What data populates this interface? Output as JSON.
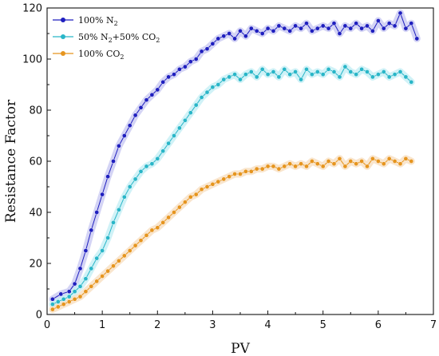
{
  "chart_data": {
    "type": "line",
    "xlabel": "PV",
    "ylabel": "Resistance Factor",
    "xlim": [
      0,
      7
    ],
    "ylim": [
      0,
      120
    ],
    "xticks": [
      "0",
      "1",
      "2",
      "3",
      "4",
      "5",
      "6",
      "7"
    ],
    "yticks": [
      "0",
      "20",
      "40",
      "60",
      "80",
      "100",
      "120"
    ],
    "legend_position": "top-left",
    "grid": false,
    "series": [
      {
        "name": "100% N2",
        "legend_label": {
          "base": "100% N",
          "sub": "2",
          "rest": ""
        },
        "color": "#1f1fbf",
        "glow": "#c9c9f2",
        "x": [
          0.1,
          0.25,
          0.4,
          0.5,
          0.6,
          0.7,
          0.8,
          0.9,
          1.0,
          1.1,
          1.2,
          1.3,
          1.4,
          1.5,
          1.6,
          1.7,
          1.8,
          1.9,
          2.0,
          2.1,
          2.2,
          2.3,
          2.4,
          2.5,
          2.6,
          2.7,
          2.8,
          2.9,
          3.0,
          3.1,
          3.2,
          3.3,
          3.4,
          3.5,
          3.6,
          3.7,
          3.8,
          3.9,
          4.0,
          4.1,
          4.2,
          4.3,
          4.4,
          4.5,
          4.6,
          4.7,
          4.8,
          4.9,
          5.0,
          5.1,
          5.2,
          5.3,
          5.4,
          5.5,
          5.6,
          5.7,
          5.8,
          5.9,
          6.0,
          6.1,
          6.2,
          6.3,
          6.4,
          6.5,
          6.6,
          6.7
        ],
        "y": [
          6,
          8,
          9,
          12,
          18,
          25,
          33,
          40,
          47,
          54,
          60,
          66,
          70,
          74,
          78,
          81,
          84,
          86,
          88,
          91,
          93,
          94,
          96,
          97,
          99,
          100,
          103,
          104,
          106,
          108,
          109,
          110,
          108,
          111,
          109,
          112,
          111,
          110,
          112,
          111,
          113,
          112,
          111,
          113,
          112,
          114,
          111,
          112,
          113,
          112,
          114,
          110,
          113,
          112,
          114,
          112,
          113,
          111,
          115,
          112,
          114,
          113,
          118,
          112,
          114,
          108
        ]
      },
      {
        "name": "50% N2+50% CO2",
        "legend_label": {
          "base": "50% N",
          "sub": "2",
          "rest": "+50% CO",
          "sub2": "2"
        },
        "color": "#29b6c8",
        "glow": "#c4eff5",
        "x": [
          0.1,
          0.2,
          0.3,
          0.4,
          0.5,
          0.6,
          0.7,
          0.8,
          0.9,
          1.0,
          1.1,
          1.2,
          1.3,
          1.4,
          1.5,
          1.6,
          1.7,
          1.8,
          1.9,
          2.0,
          2.1,
          2.2,
          2.3,
          2.4,
          2.5,
          2.6,
          2.7,
          2.8,
          2.9,
          3.0,
          3.1,
          3.2,
          3.3,
          3.4,
          3.5,
          3.6,
          3.7,
          3.8,
          3.9,
          4.0,
          4.1,
          4.2,
          4.3,
          4.4,
          4.5,
          4.6,
          4.7,
          4.8,
          4.9,
          5.0,
          5.1,
          5.2,
          5.3,
          5.4,
          5.5,
          5.6,
          5.7,
          5.8,
          5.9,
          6.0,
          6.1,
          6.2,
          6.3,
          6.4,
          6.5,
          6.6
        ],
        "y": [
          4,
          5,
          6,
          7,
          9,
          11,
          14,
          18,
          22,
          25,
          30,
          36,
          41,
          46,
          50,
          53,
          56,
          58,
          59,
          61,
          64,
          67,
          70,
          73,
          76,
          79,
          82,
          85,
          87,
          89,
          90,
          92,
          93,
          94,
          92,
          94,
          95,
          93,
          96,
          94,
          95,
          93,
          96,
          94,
          95,
          92,
          96,
          94,
          95,
          94,
          96,
          95,
          93,
          97,
          95,
          94,
          96,
          95,
          93,
          94,
          95,
          93,
          94,
          95,
          93,
          91
        ]
      },
      {
        "name": "100% CO2",
        "legend_label": {
          "base": "100% CO",
          "sub": "2",
          "rest": ""
        },
        "color": "#e6951f",
        "glow": "#f8dfc1",
        "x": [
          0.1,
          0.2,
          0.3,
          0.4,
          0.5,
          0.6,
          0.7,
          0.8,
          0.9,
          1.0,
          1.1,
          1.2,
          1.3,
          1.4,
          1.5,
          1.6,
          1.7,
          1.8,
          1.9,
          2.0,
          2.1,
          2.2,
          2.3,
          2.4,
          2.5,
          2.6,
          2.7,
          2.8,
          2.9,
          3.0,
          3.1,
          3.2,
          3.3,
          3.4,
          3.5,
          3.6,
          3.7,
          3.8,
          3.9,
          4.0,
          4.1,
          4.2,
          4.3,
          4.4,
          4.5,
          4.6,
          4.7,
          4.8,
          4.9,
          5.0,
          5.1,
          5.2,
          5.3,
          5.4,
          5.5,
          5.6,
          5.7,
          5.8,
          5.9,
          6.0,
          6.1,
          6.2,
          6.3,
          6.4,
          6.5,
          6.6
        ],
        "y": [
          2,
          3,
          4,
          5,
          6,
          7,
          9,
          11,
          13,
          15,
          17,
          19,
          21,
          23,
          25,
          27,
          29,
          31,
          33,
          34,
          36,
          38,
          40,
          42,
          44,
          46,
          47,
          49,
          50,
          51,
          52,
          53,
          54,
          55,
          55,
          56,
          56,
          57,
          57,
          58,
          58,
          57,
          58,
          59,
          58,
          59,
          58,
          60,
          59,
          58,
          60,
          59,
          61,
          58,
          60,
          59,
          60,
          58,
          61,
          60,
          59,
          61,
          60,
          59,
          61,
          60
        ]
      }
    ]
  }
}
